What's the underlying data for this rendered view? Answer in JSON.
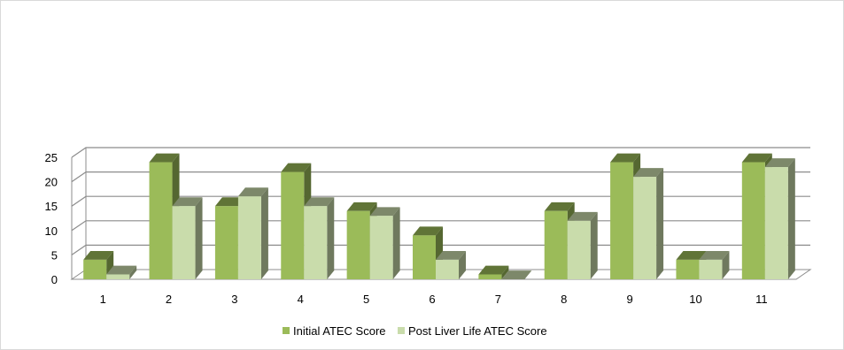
{
  "chart_data": {
    "type": "bar",
    "title": "",
    "xlabel": "",
    "ylabel": "",
    "categories": [
      "1",
      "2",
      "3",
      "4",
      "5",
      "6",
      "7",
      "8",
      "9",
      "10",
      "11"
    ],
    "series": [
      {
        "name": "Initial ATEC Score",
        "values": [
          4,
          24,
          15,
          22,
          14,
          9,
          1,
          14,
          24,
          4,
          24
        ],
        "color": "#9bbb59"
      },
      {
        "name": "Post Liver Life ATEC Score",
        "values": [
          1,
          15,
          17,
          15,
          13,
          4,
          0,
          12,
          21,
          4,
          23
        ],
        "color": "#c9dcab"
      }
    ],
    "ylim": [
      0,
      25
    ],
    "yticks": [
      "0",
      "5",
      "10",
      "15",
      "20",
      "25"
    ],
    "grid": true,
    "legend_position": "bottom"
  }
}
